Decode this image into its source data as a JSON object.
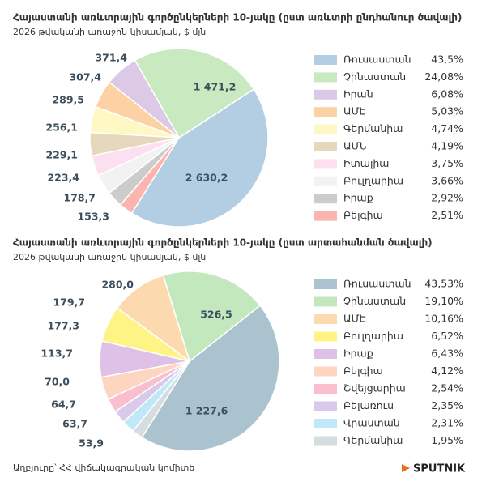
{
  "chart_data": [
    {
      "type": "pie",
      "title": "Հայաստանի առևտրային գործընկերների 10-յակը (ըստ առևտրի  ընդհանուր ծավալի)",
      "subtitle": "2026 թվականի առաջին կիսամյակ, $ մլն",
      "categories": [
        "Ռուսաստան",
        "Չինաստան",
        "Իրան",
        "ԱՄԷ",
        "Գերմանիա",
        "ԱՄՆ",
        "Իտալիա",
        "Բուլղարիա",
        "Իրաք",
        "Բելգիա"
      ],
      "values": [
        2630.2,
        1471.2,
        371.4,
        307.4,
        289.5,
        256.1,
        229.1,
        223.4,
        178.7,
        153.3
      ],
      "value_labels": [
        "2 630,2",
        "1 471,2",
        "371,4",
        "307,4",
        "289,5",
        "256,1",
        "229,1",
        "223,4",
        "178,7",
        "153,3"
      ],
      "shares": [
        43.5,
        24.08,
        6.08,
        5.03,
        4.74,
        4.19,
        3.75,
        3.66,
        2.92,
        2.51
      ],
      "share_labels": [
        "43,5%",
        "24,08%",
        "6,08%",
        "5,03%",
        "4,74%",
        "4,19%",
        "3,75%",
        "3,66%",
        "2,92%",
        "2,51%"
      ],
      "colors": [
        "#b3cde3",
        "#c9e9c0",
        "#dcc9e6",
        "#fcd2a5",
        "#fef9c4",
        "#e5d8bd",
        "#fde0ef",
        "#f2f2f2",
        "#cccccc",
        "#fbb4ae"
      ]
    },
    {
      "type": "pie",
      "title": "Հայաստանի առևտրային գործընկերների 10-յակը (ըստ արտահանման ծավալի)",
      "subtitle": "2026 թվականի առաջին կիսամյակ, $ մլն",
      "categories": [
        "Ռուսաստան",
        "Չինաստան",
        "ԱՄԷ",
        "Բուլղարիա",
        "Իրաք",
        "Բելգիա",
        "Շվեյցարիա",
        "Բելառուս",
        "Վրաստան",
        "Գերմանիա"
      ],
      "values": [
        1227.6,
        526.5,
        280.0,
        179.7,
        177.3,
        113.7,
        70.0,
        64.7,
        63.7,
        53.9
      ],
      "value_labels": [
        "1 227,6",
        "526,5",
        "280,0",
        "179,7",
        "177,3",
        "113,7",
        "70,0",
        "64,7",
        "63,7",
        "53,9"
      ],
      "shares": [
        43.53,
        19.1,
        10.16,
        6.52,
        6.43,
        4.12,
        2.54,
        2.35,
        2.31,
        1.95
      ],
      "share_labels": [
        "43,53%",
        "19,10%",
        "10,16%",
        "6,52%",
        "6,43%",
        "4,12%",
        "2,54%",
        "2,35%",
        "2,31%",
        "1,95%"
      ],
      "colors": [
        "#abc3cf",
        "#c4e8bd",
        "#fdd9b0",
        "#fef486",
        "#dfc0e6",
        "#fdd5c0",
        "#f9bfcf",
        "#d9c9ea",
        "#bfe8f8",
        "#d5dde0"
      ]
    }
  ],
  "footer": {
    "source": "Աղբյուրը՝ ՀՀ վիճակագրական կոմիտե",
    "logo": "SPUTNIK"
  }
}
